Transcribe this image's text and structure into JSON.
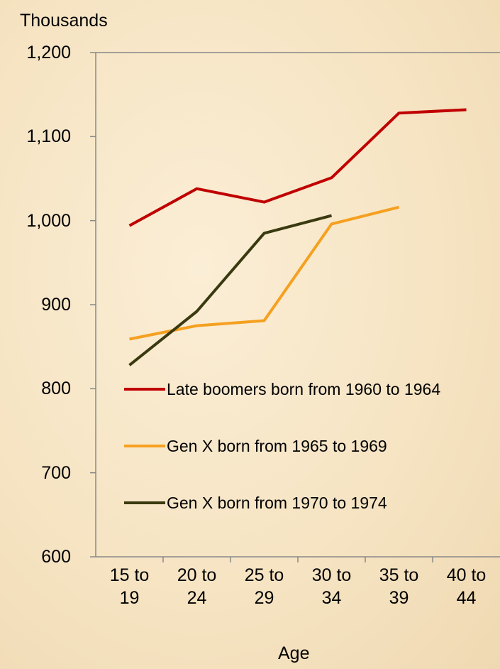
{
  "chart_data": {
    "type": "line",
    "y_label": "Thousands",
    "x_label": "Age",
    "categories": [
      "15 to 19",
      "20 to 24",
      "25 to 29",
      "30 to 34",
      "35 to 39",
      "40 to 44"
    ],
    "series": [
      {
        "name": "Late boomers born from 1960 to 1964",
        "color": "#c00000",
        "values": [
          994,
          1038,
          1022,
          1051,
          1128,
          1132
        ]
      },
      {
        "name": "Gen X born from 1965 to 1969",
        "color": "#f5a020",
        "values": [
          859,
          875,
          881,
          996,
          1016,
          null
        ]
      },
      {
        "name": "Gen X born from 1970 to 1974",
        "color": "#3a3a10",
        "values": [
          828,
          892,
          985,
          1006,
          null,
          null
        ]
      }
    ],
    "ylim": [
      600,
      1200
    ],
    "yticks": [
      600,
      700,
      800,
      900,
      {
        "value": 1000,
        "label": "1,000"
      },
      {
        "value": 1100,
        "label": "1,100"
      },
      {
        "value": 1200,
        "label": "1,200"
      }
    ],
    "legend": "inside-lower-left"
  }
}
